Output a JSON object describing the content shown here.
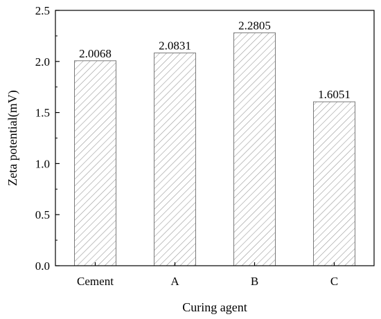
{
  "chart_data": {
    "type": "bar",
    "categories": [
      "Cement",
      "A",
      "B",
      "C"
    ],
    "values": [
      2.0068,
      2.0831,
      2.2805,
      1.6051
    ],
    "data_labels": [
      "2.0068",
      "2.0831",
      "2.2805",
      "1.6051"
    ],
    "title": "",
    "xlabel": "Curing agent",
    "ylabel": "Zeta potential(mV)",
    "ylim": [
      0,
      2.5
    ],
    "yticks": [
      0.0,
      0.5,
      1.0,
      1.5,
      2.0,
      2.5
    ],
    "ytick_labels": [
      "0.0",
      "0.5",
      "1.0",
      "1.5",
      "2.0",
      "2.5"
    ],
    "grid": false,
    "legend": "none",
    "bar_fill": "hatched",
    "colors": {
      "bar_hatch": "#9a9a9a",
      "bar_edge": "#7a7a7a",
      "axis": "#000000"
    }
  }
}
